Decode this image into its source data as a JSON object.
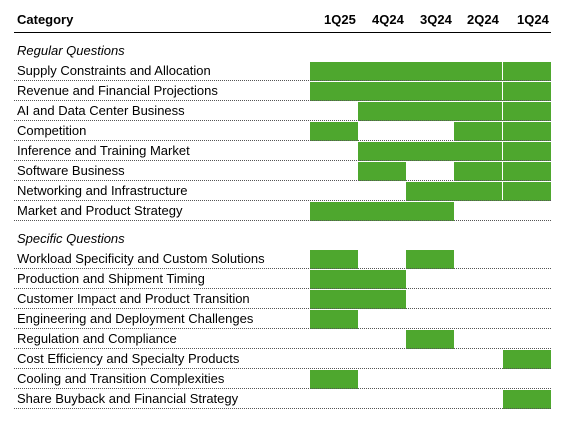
{
  "chart_data": {
    "type": "table",
    "header": {
      "category": "Category",
      "quarters": [
        "1Q25",
        "4Q24",
        "3Q24",
        "2Q24",
        "1Q24"
      ]
    },
    "sections": [
      {
        "title": "Regular Questions",
        "rows": [
          {
            "category": "Supply Constraints and Allocation",
            "marks": [
              1,
              1,
              1,
              1,
              1
            ]
          },
          {
            "category": "Revenue and Financial Projections",
            "marks": [
              1,
              1,
              1,
              1,
              1
            ]
          },
          {
            "category": "AI and Data Center Business",
            "marks": [
              0,
              1,
              1,
              1,
              1
            ]
          },
          {
            "category": "Competition",
            "marks": [
              1,
              0,
              0,
              1,
              1
            ]
          },
          {
            "category": "Inference and Training Market",
            "marks": [
              0,
              1,
              1,
              1,
              1
            ]
          },
          {
            "category": "Software Business",
            "marks": [
              0,
              1,
              0,
              1,
              1
            ]
          },
          {
            "category": "Networking and Infrastructure",
            "marks": [
              0,
              0,
              1,
              1,
              1
            ]
          },
          {
            "category": "Market and Product Strategy",
            "marks": [
              1,
              1,
              1,
              0,
              0
            ]
          }
        ]
      },
      {
        "title": "Specific Questions",
        "rows": [
          {
            "category": "Workload Specificity and Custom Solutions",
            "marks": [
              1,
              0,
              1,
              0,
              0
            ]
          },
          {
            "category": "Production and Shipment Timing",
            "marks": [
              1,
              1,
              0,
              0,
              0
            ]
          },
          {
            "category": "Customer Impact and Product Transition",
            "marks": [
              1,
              1,
              0,
              0,
              0
            ]
          },
          {
            "category": "Engineering and Deployment Challenges",
            "marks": [
              1,
              0,
              0,
              0,
              0
            ]
          },
          {
            "category": "Regulation and Compliance",
            "marks": [
              0,
              0,
              1,
              0,
              0
            ]
          },
          {
            "category": "Cost Efficiency and Specialty Products",
            "marks": [
              0,
              0,
              0,
              0,
              1
            ]
          },
          {
            "category": "Cooling and Transition Complexities",
            "marks": [
              1,
              0,
              0,
              0,
              0
            ]
          },
          {
            "category": "Share Buyback and Financial Strategy",
            "marks": [
              0,
              0,
              0,
              0,
              1
            ]
          }
        ]
      }
    ],
    "fill_color": "#4ea72e"
  }
}
